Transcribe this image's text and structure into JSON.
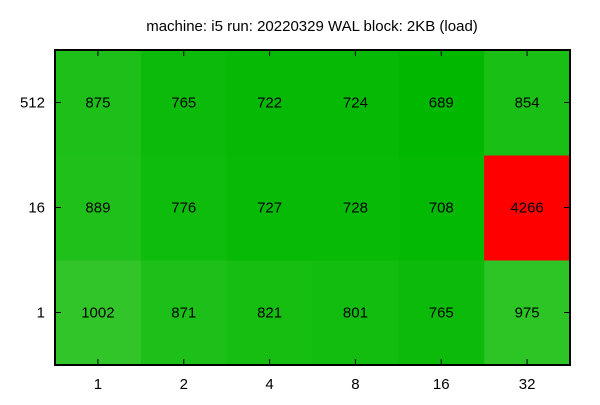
{
  "chart_data": {
    "type": "heatmap",
    "title": "machine: i5 run: 20220329 WAL block: 2KB (load)",
    "xlabel": "",
    "ylabel": "",
    "x_categories": [
      "1",
      "2",
      "4",
      "8",
      "16",
      "32"
    ],
    "y_categories": [
      "1",
      "16",
      "512"
    ],
    "values": [
      [
        1002,
        871,
        821,
        801,
        765,
        975
      ],
      [
        889,
        776,
        727,
        728,
        708,
        4266
      ],
      [
        875,
        765,
        722,
        724,
        689,
        854
      ]
    ],
    "colors": {
      "low": "#00b800",
      "high": "#ff0000",
      "axis": "#000000",
      "text": "#000000",
      "background": "#ffffff"
    },
    "grid": false,
    "legend": "none"
  }
}
